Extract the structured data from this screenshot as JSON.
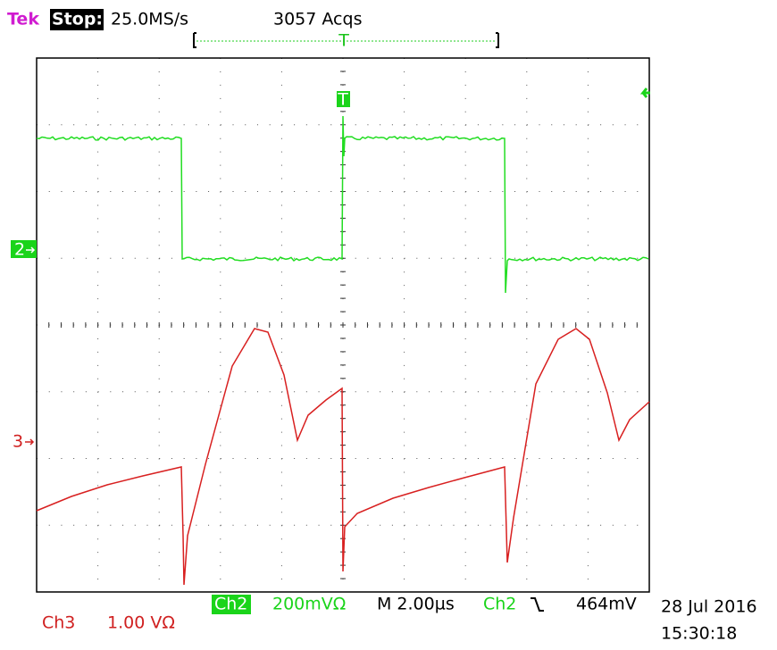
{
  "header": {
    "brand": "Tek",
    "state": "Stop:",
    "sample_rate": "25.0MS/s",
    "acquisitions": "3057 Acqs"
  },
  "markers": {
    "trigger": "T",
    "trigger_top": "T",
    "ch2": "2",
    "ch3": "3"
  },
  "footer": {
    "ch2_label": "Ch2",
    "ch2_scale": "200mVΩ",
    "timebase": "M 2.00µs",
    "trigger_source": "Ch2",
    "trigger_level": "464mV",
    "date": "28 Jul 2016",
    "time": "15:30:18",
    "ch3_label": "Ch3",
    "ch3_scale": "1.00 VΩ"
  }
}
